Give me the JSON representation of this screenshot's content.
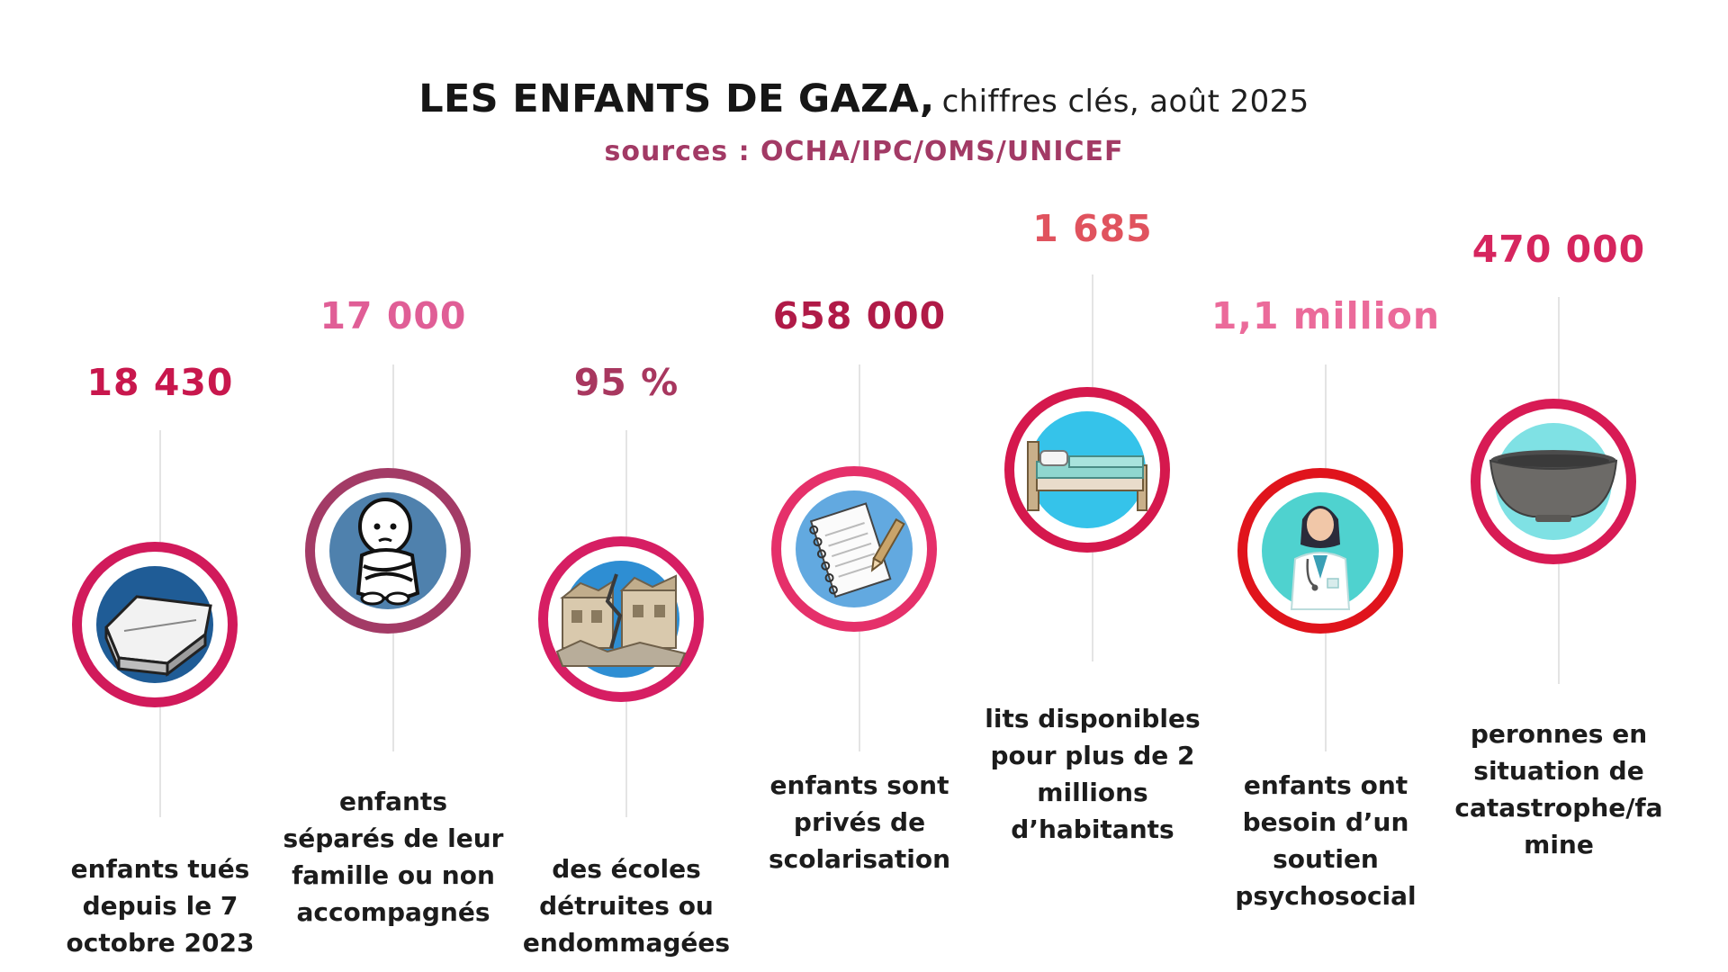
{
  "header": {
    "title_main": "LES ENFANTS DE GAZA,",
    "title_sub": "chiffres clés, août 2025",
    "sources": "sources : OCHA/IPC/OMS/UNICEF"
  },
  "colors": {
    "title": "#161616",
    "sources": "#a23a65",
    "line": "#e4e4e4"
  },
  "stats": [
    {
      "value": "18 430",
      "value_color": "#c8174d",
      "ring_color": "#d11a5b",
      "inner_color": "#1f5c96",
      "icon": "coffin-icon",
      "lines": [
        "enfants tués",
        "depuis le 7",
        "octobre 2023"
      ]
    },
    {
      "value": "17 000",
      "value_color": "#e05e96",
      "ring_color": "#a33b66",
      "inner_color": "#4f81ad",
      "icon": "sad-child-icon",
      "lines": [
        "enfants",
        "séparés de leur",
        "famille ou non",
        "accompagnés"
      ]
    },
    {
      "value": "95 %",
      "value_color": "#a8375f",
      "ring_color": "#d61e63",
      "inner_color": "#2e8ed3",
      "icon": "destroyed-building-icon",
      "lines": [
        "des écoles",
        "détruites ou",
        "endommagées"
      ]
    },
    {
      "value": "658 000",
      "value_color": "#b01a47",
      "ring_color": "#e5306a",
      "inner_color": "#62a9e0",
      "icon": "notebook-icon",
      "lines": [
        "enfants sont",
        "privés de",
        "scolarisation"
      ]
    },
    {
      "value": "1 685",
      "value_color": "#e0535e",
      "ring_color": "#d5184d",
      "inner_color": "#35c3ea",
      "icon": "bed-icon",
      "lines": [
        "lits disponibles",
        "pour plus de 2",
        "millions",
        "d’habitants"
      ]
    },
    {
      "value": "1,1 million",
      "value_color": "#eb6a9a",
      "ring_color": "#e0141c",
      "inner_color": "#4fd2cf",
      "icon": "doctor-icon",
      "lines": [
        "enfants ont",
        "besoin d’un",
        "soutien",
        "psychosocial"
      ]
    },
    {
      "value": "470 000",
      "value_color": "#d6255e",
      "ring_color": "#d81b55",
      "inner_color": "#7fe1e4",
      "icon": "bowl-icon",
      "lines": [
        "peronnes en",
        "situation de",
        "catastrophe/fa",
        "mine"
      ]
    }
  ]
}
